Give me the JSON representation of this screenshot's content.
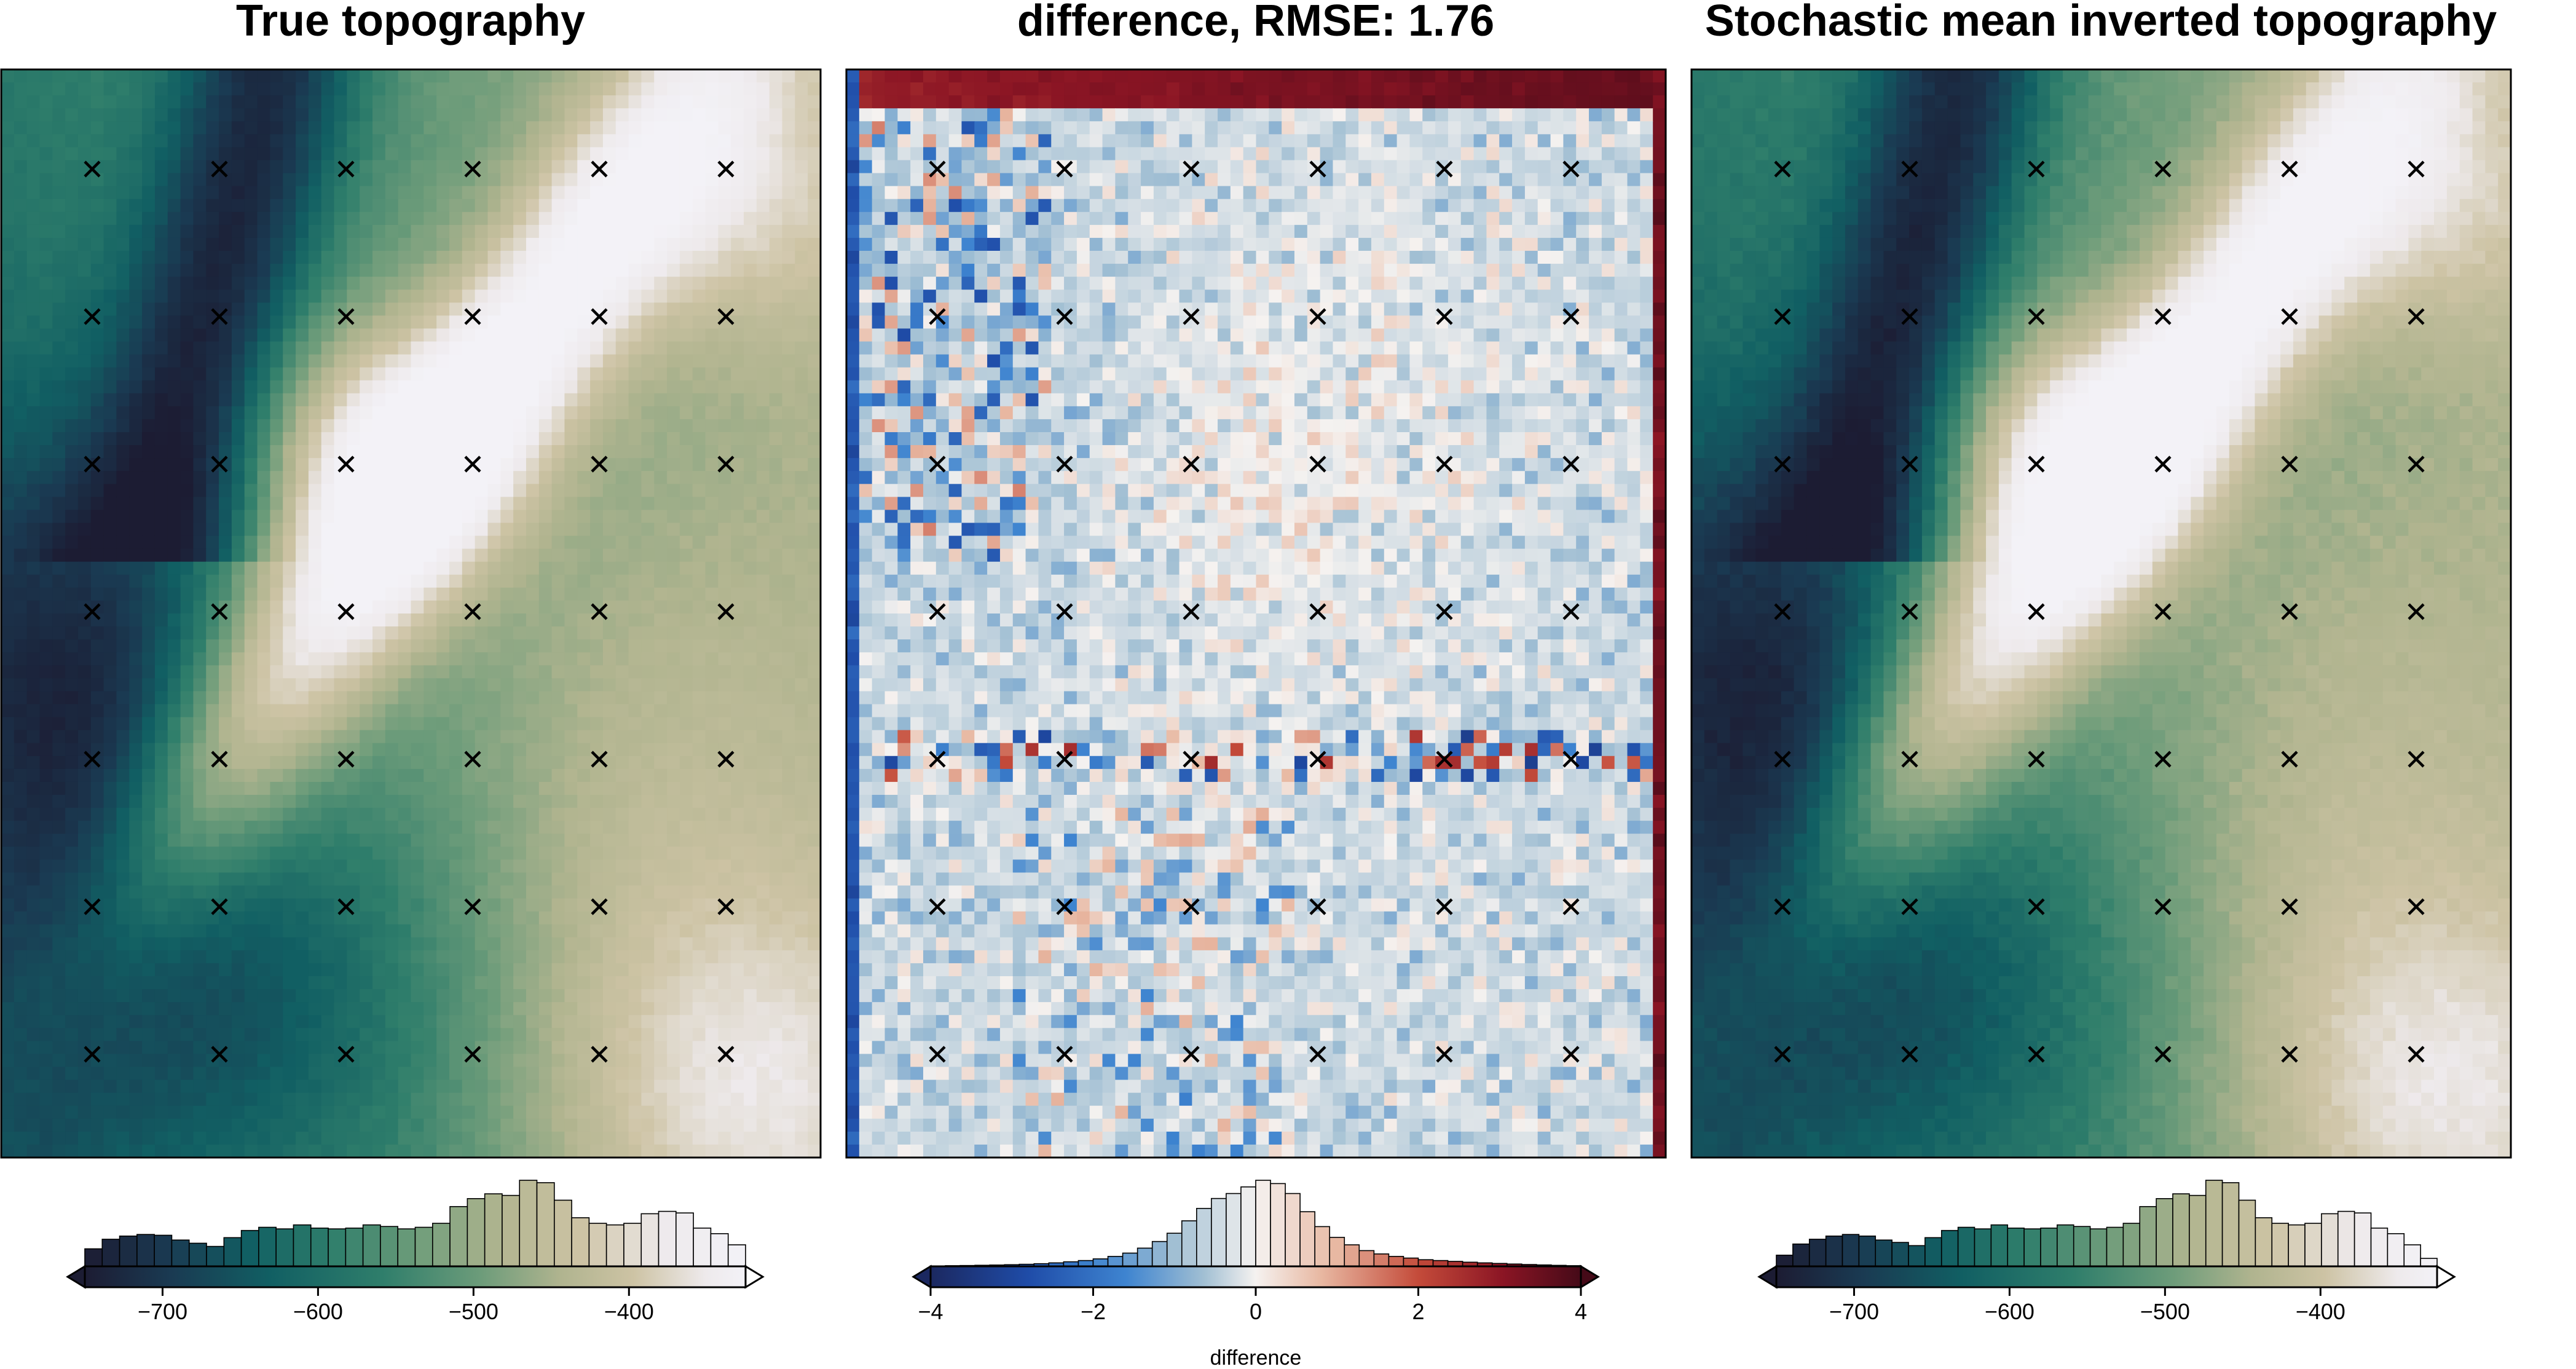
{
  "chart_data": [
    {
      "type": "heatmap",
      "title": "True topography",
      "markers": "x",
      "colorbar": {
        "label": "",
        "ticks": [
          -700,
          -600,
          -500,
          -400
        ],
        "range": [
          -750,
          -325
        ],
        "extend": "max",
        "histogram_counts": [
          22,
          34,
          38,
          40,
          39,
          33,
          29,
          25,
          36,
          45,
          49,
          47,
          52,
          48,
          47,
          48,
          52,
          50,
          47,
          49,
          54,
          75,
          85,
          91,
          89,
          108,
          105,
          83,
          61,
          54,
          52,
          54,
          66,
          69,
          67,
          48,
          41,
          27
        ]
      },
      "colormap": [
        "#1c1c33",
        "#1a3a52",
        "#115f63",
        "#2f7e6b",
        "#6d9c7a",
        "#b0b48f",
        "#cdc3a4",
        "#eeeaec",
        "#f3f2f7"
      ]
    },
    {
      "type": "heatmap",
      "title": "difference, RMSE: 1.76",
      "markers": "x",
      "colorbar": {
        "label": "difference",
        "ticks": [
          -4,
          -2,
          0,
          2,
          4
        ],
        "range": [
          -4,
          4
        ],
        "extend": "both",
        "histogram_counts": [
          0.5,
          0.8,
          1,
          1.3,
          1.6,
          2,
          2.5,
          3.2,
          4.2,
          5.5,
          7,
          9,
          12,
          16,
          22,
          30,
          40,
          55,
          70,
          82,
          88,
          96,
          104,
          100,
          88,
          66,
          48,
          35,
          26,
          19,
          15,
          12,
          10,
          8,
          7,
          6,
          5,
          4.2,
          3.5,
          2.8,
          2.2,
          1.7,
          1.2,
          0.8
        ]
      },
      "colormap": [
        "#1b2860",
        "#1f4ca8",
        "#3e84d0",
        "#a1bfd3",
        "#f5f2f0",
        "#e8b8a2",
        "#c44b3a",
        "#8b1524",
        "#450a18"
      ]
    },
    {
      "type": "heatmap",
      "title": "Stochastic mean inverted topography",
      "markers": "x",
      "colorbar": {
        "label": "",
        "ticks": [
          -700,
          -600,
          -500,
          -400
        ],
        "range": [
          -750,
          -325
        ],
        "extend": "both",
        "histogram_counts": [
          14,
          28,
          34,
          38,
          40,
          38,
          33,
          30,
          26,
          36,
          45,
          49,
          47,
          52,
          48,
          47,
          48,
          52,
          50,
          47,
          49,
          54,
          75,
          85,
          91,
          89,
          108,
          105,
          83,
          61,
          54,
          52,
          54,
          66,
          69,
          67,
          48,
          41,
          27,
          10
        ]
      },
      "colormap": [
        "#1c1c33",
        "#1a3a52",
        "#115f63",
        "#2f7e6b",
        "#6d9c7a",
        "#b0b48f",
        "#cdc3a4",
        "#eeeaec",
        "#f3f2f7"
      ]
    }
  ]
}
